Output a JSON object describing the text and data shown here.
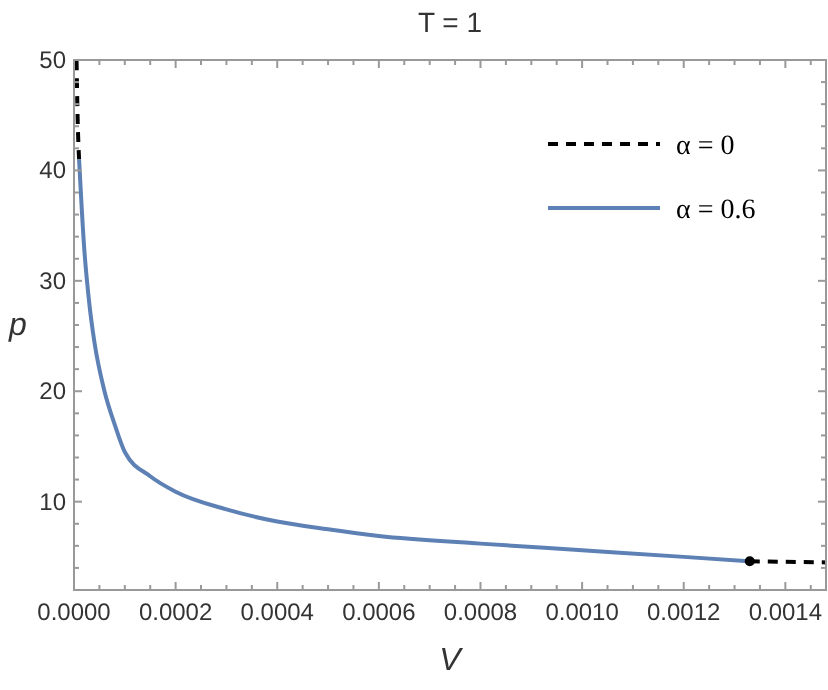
{
  "chart_data": {
    "type": "line",
    "title": "T = 1",
    "xlabel": "V",
    "ylabel": "p",
    "xlim": [
      0,
      0.00148
    ],
    "ylim": [
      2,
      50
    ],
    "xticks": [
      {
        "value": 0,
        "label": "0.0000"
      },
      {
        "value": 5e-05,
        "label": null
      },
      {
        "value": 0.0001,
        "label": null
      },
      {
        "value": 0.00015,
        "label": null
      },
      {
        "value": 0.0002,
        "label": "0.0002"
      },
      {
        "value": 0.00025,
        "label": null
      },
      {
        "value": 0.0003,
        "label": null
      },
      {
        "value": 0.00035,
        "label": null
      },
      {
        "value": 0.0004,
        "label": "0.0004"
      },
      {
        "value": 0.00045,
        "label": null
      },
      {
        "value": 0.0005,
        "label": null
      },
      {
        "value": 0.00055,
        "label": null
      },
      {
        "value": 0.0006,
        "label": "0.0006"
      },
      {
        "value": 0.00065,
        "label": null
      },
      {
        "value": 0.0007,
        "label": null
      },
      {
        "value": 0.00075,
        "label": null
      },
      {
        "value": 0.0008,
        "label": "0.0008"
      },
      {
        "value": 0.00085,
        "label": null
      },
      {
        "value": 0.0009,
        "label": null
      },
      {
        "value": 0.00095,
        "label": null
      },
      {
        "value": 0.001,
        "label": "0.0010"
      },
      {
        "value": 0.00105,
        "label": null
      },
      {
        "value": 0.0011,
        "label": null
      },
      {
        "value": 0.00115,
        "label": null
      },
      {
        "value": 0.0012,
        "label": "0.0012"
      },
      {
        "value": 0.00125,
        "label": null
      },
      {
        "value": 0.0013,
        "label": null
      },
      {
        "value": 0.00135,
        "label": null
      },
      {
        "value": 0.0014,
        "label": "0.0014"
      },
      {
        "value": 0.00145,
        "label": null
      }
    ],
    "yticks": [
      {
        "value": 4,
        "label": null
      },
      {
        "value": 6,
        "label": null
      },
      {
        "value": 8,
        "label": null
      },
      10,
      {
        "value": 12,
        "label": null
      },
      {
        "value": 14,
        "label": null
      },
      {
        "value": 16,
        "label": null
      },
      {
        "value": 18,
        "label": null
      },
      20,
      {
        "value": 22,
        "label": null
      },
      {
        "value": 24,
        "label": null
      },
      {
        "value": 26,
        "label": null
      },
      {
        "value": 28,
        "label": null
      },
      30,
      {
        "value": 32,
        "label": null
      },
      {
        "value": 34,
        "label": null
      },
      {
        "value": 36,
        "label": null
      },
      {
        "value": 38,
        "label": null
      },
      40,
      {
        "value": 42,
        "label": null
      },
      {
        "value": 44,
        "label": null
      },
      {
        "value": 46,
        "label": null
      },
      {
        "value": 48,
        "label": null
      },
      50
    ],
    "grid": false,
    "legend": "top right",
    "series": [
      {
        "name": "α = 0",
        "color": "#000000",
        "line_style": "dashed",
        "x": [
          5e-06,
          7e-06,
          1e-05
        ],
        "values": [
          50,
          45,
          41
        ]
      },
      {
        "color": "#000000",
        "line_style": "dashed",
        "x": [
          0.00133,
          0.00148
        ],
        "values": [
          4.6,
          4.5
        ]
      },
      {
        "name": "α = 0.6",
        "color": "#5e81b5",
        "line_style": "solid",
        "x": [
          1e-05,
          2e-05,
          3e-05,
          4e-05,
          6e-05,
          8e-05,
          0.0001,
          0.00015,
          0.0002,
          0.0003,
          0.0004,
          0.0005,
          0.0006,
          0.0008,
          0.001,
          0.0012,
          0.00133
        ],
        "values": [
          41,
          33,
          28,
          24.5,
          20,
          17,
          14.5,
          12.3,
          10.9,
          9.3,
          8.2,
          7.5,
          6.9,
          6.2,
          5.6,
          5.0,
          4.6
        ]
      },
      {
        "type": "scatter",
        "color": "#000000",
        "marker": "circle",
        "x": [
          0.00133
        ],
        "values": [
          4.6
        ]
      }
    ]
  }
}
